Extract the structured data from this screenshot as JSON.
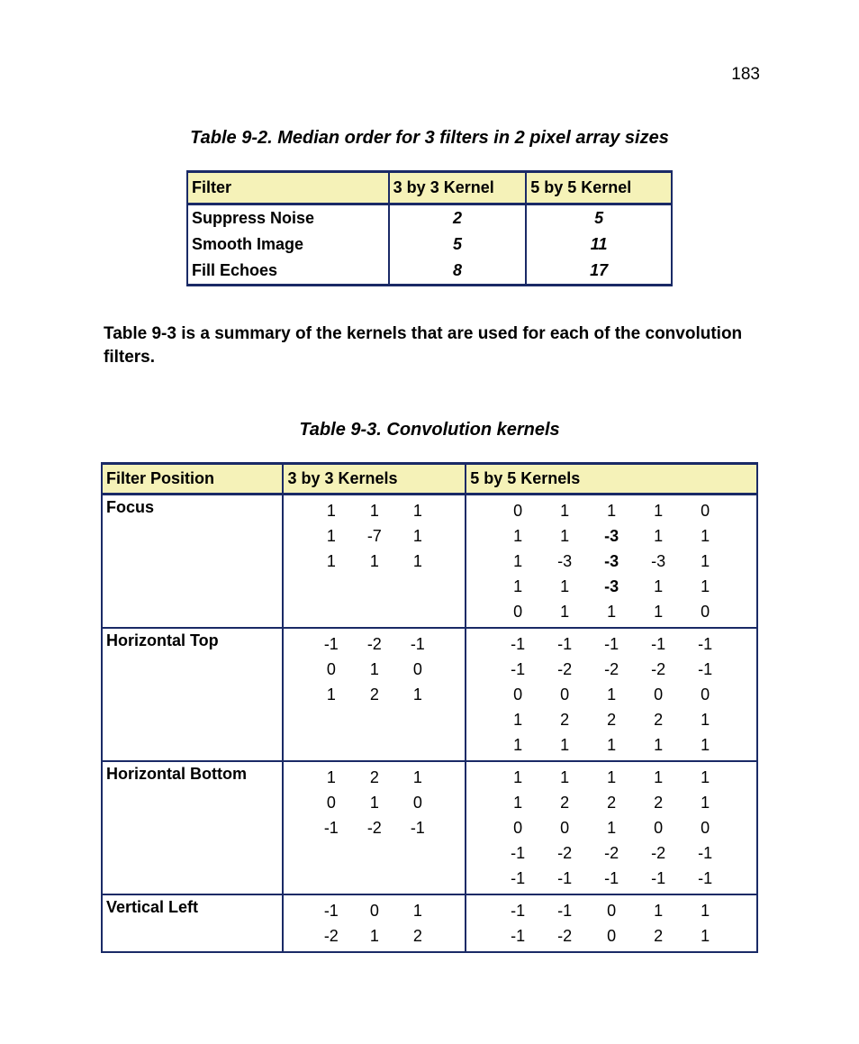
{
  "page_number": "183",
  "colors": {
    "border": "#1a2a66",
    "header_bg": "#f5f2b8",
    "page_bg": "#ffffff",
    "text": "#000000"
  },
  "fonts": {
    "family": "Arial",
    "body_size_pt": 14,
    "caption_size_pt": 15
  },
  "table92": {
    "title": "Table 9-2. Median order for 3  filters in 2 pixel array sizes",
    "columns": [
      "Filter",
      "3 by 3 Kernel",
      "5 by 5 Kernel"
    ],
    "rows": [
      {
        "name": "Suppress Noise",
        "k3": "2",
        "k5": "5"
      },
      {
        "name": "Smooth Image",
        "k3": "5",
        "k5": "11"
      },
      {
        "name": "Fill Echoes",
        "k3": "8",
        "k5": "17"
      }
    ]
  },
  "intertext": "Table 9-3 is a summary of the kernels that are used for each of the convolution filters.",
  "table93": {
    "title": "Table 9-3. Convolution kernels",
    "columns": [
      "Filter Position",
      "3 by 3 Kernels",
      "5 by 5 Kernels"
    ],
    "bold_cells_5x5": {
      "Focus": [
        "1,2",
        "2,2",
        "3,2"
      ]
    },
    "rows": [
      {
        "name": "Focus",
        "k3": [
          [
            1,
            1,
            1
          ],
          [
            1,
            -7,
            1
          ],
          [
            1,
            1,
            1
          ]
        ],
        "k5": [
          [
            0,
            1,
            1,
            1,
            0
          ],
          [
            1,
            1,
            -3,
            1,
            1
          ],
          [
            1,
            -3,
            -3,
            -3,
            1
          ],
          [
            1,
            1,
            -3,
            1,
            1
          ],
          [
            0,
            1,
            1,
            1,
            0
          ]
        ]
      },
      {
        "name": "Horizontal Top",
        "k3": [
          [
            -1,
            -2,
            -1
          ],
          [
            0,
            1,
            0
          ],
          [
            1,
            2,
            1
          ]
        ],
        "k5": [
          [
            -1,
            -1,
            -1,
            -1,
            -1
          ],
          [
            -1,
            -2,
            -2,
            -2,
            -1
          ],
          [
            0,
            0,
            1,
            0,
            0
          ],
          [
            1,
            2,
            2,
            2,
            1
          ],
          [
            1,
            1,
            1,
            1,
            1
          ]
        ]
      },
      {
        "name": "Horizontal Bottom",
        "k3": [
          [
            1,
            2,
            1
          ],
          [
            0,
            1,
            0
          ],
          [
            -1,
            -2,
            -1
          ]
        ],
        "k5": [
          [
            1,
            1,
            1,
            1,
            1
          ],
          [
            1,
            2,
            2,
            2,
            1
          ],
          [
            0,
            0,
            1,
            0,
            0
          ],
          [
            -1,
            -2,
            -2,
            -2,
            -1
          ],
          [
            -1,
            -1,
            -1,
            -1,
            -1
          ]
        ]
      },
      {
        "name": "Vertical Left",
        "k3": [
          [
            -1,
            0,
            1
          ],
          [
            -2,
            1,
            2
          ]
        ],
        "k5": [
          [
            -1,
            -1,
            0,
            1,
            1
          ],
          [
            -1,
            -2,
            0,
            2,
            1
          ]
        ]
      }
    ]
  }
}
